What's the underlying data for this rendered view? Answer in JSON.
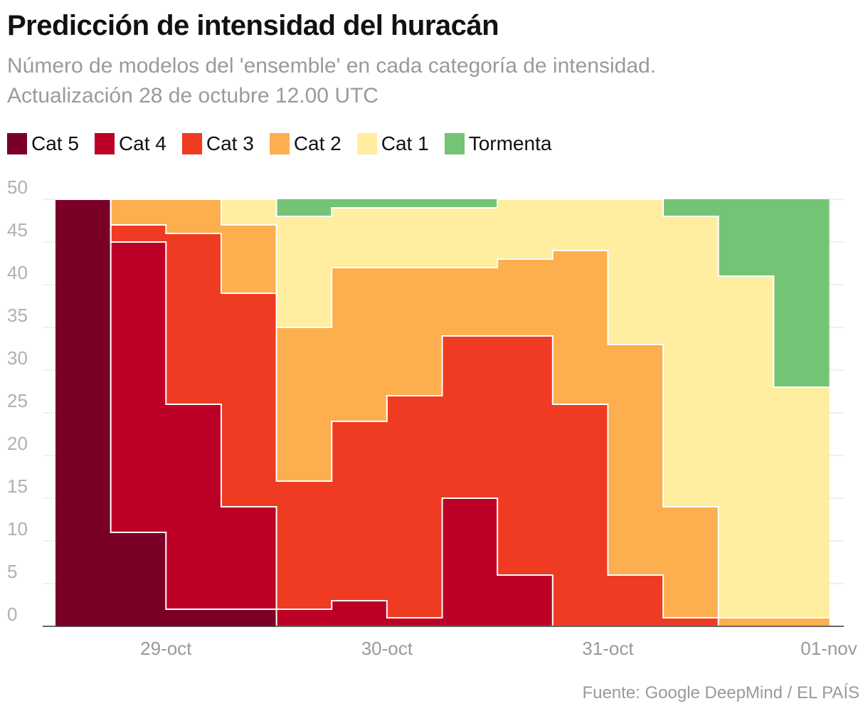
{
  "header": {
    "title": "Predicción de intensidad del huracán",
    "subtitle_line1": "Número de modelos del 'ensemble' en cada categoría de intensidad.",
    "subtitle_line2": "Actualización 28 de octubre 12.00 UTC"
  },
  "legend": [
    {
      "label": "Cat 5",
      "color": "#7a0025"
    },
    {
      "label": "Cat 4",
      "color": "#bd0026"
    },
    {
      "label": "Cat 3",
      "color": "#ef3b22"
    },
    {
      "label": "Cat 2",
      "color": "#fdae4f"
    },
    {
      "label": "Cat 1",
      "color": "#ffeda0"
    },
    {
      "label": "Tormenta",
      "color": "#74c476"
    }
  ],
  "source": "Fuente: Google DeepMind / EL PAÍS",
  "chart_data": {
    "type": "area",
    "stacked": true,
    "step": true,
    "x_ticks": [
      "29-oct",
      "30-oct",
      "31-oct",
      "01-nov"
    ],
    "x_tick_positions_in_periods": [
      2,
      6,
      10,
      14
    ],
    "periods": 14,
    "ylim": [
      0,
      50
    ],
    "y_ticks": [
      0,
      5,
      10,
      15,
      20,
      25,
      30,
      35,
      40,
      45,
      50
    ],
    "grid": true,
    "legend_position": "top-left",
    "series": [
      {
        "name": "Cat 5",
        "color": "#7a0025",
        "values": [
          50,
          11,
          2,
          2,
          0,
          0,
          0,
          0,
          0,
          0,
          0,
          0,
          0,
          0
        ]
      },
      {
        "name": "Cat 4",
        "color": "#bd0026",
        "values": [
          0,
          34,
          24,
          12,
          2,
          3,
          1,
          15,
          6,
          0,
          0,
          0,
          0,
          0
        ]
      },
      {
        "name": "Cat 3",
        "color": "#ef3b22",
        "values": [
          0,
          2,
          20,
          25,
          15,
          21,
          26,
          19,
          28,
          26,
          6,
          1,
          0,
          0
        ]
      },
      {
        "name": "Cat 2",
        "color": "#fdae4f",
        "values": [
          0,
          3,
          4,
          8,
          18,
          18,
          15,
          8,
          9,
          18,
          27,
          13,
          1,
          1
        ]
      },
      {
        "name": "Cat 1",
        "color": "#ffeda0",
        "values": [
          0,
          0,
          0,
          3,
          13,
          7,
          7,
          7,
          7,
          6,
          17,
          34,
          40,
          27
        ]
      },
      {
        "name": "Tormenta",
        "color": "#74c476",
        "values": [
          0,
          0,
          0,
          0,
          2,
          1,
          1,
          1,
          0,
          0,
          0,
          2,
          9,
          22
        ]
      }
    ]
  }
}
